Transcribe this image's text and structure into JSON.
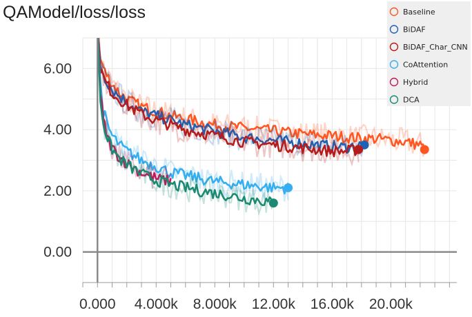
{
  "title": "QAModel/loss/loss",
  "chart_data": {
    "type": "line",
    "title": "QAModel/loss/loss",
    "xlabel": "",
    "ylabel": "",
    "xlim": [
      -1000,
      24500
    ],
    "ylim": [
      -1,
      7
    ],
    "x_ticks": [
      0,
      4000,
      8000,
      12000,
      16000,
      20000
    ],
    "x_tick_labels": [
      "0.000",
      "4.000k",
      "8.000k",
      "12.00k",
      "16.00k",
      "20.00k"
    ],
    "y_ticks": [
      0,
      2,
      4,
      6
    ],
    "y_tick_labels": [
      "0.00",
      "2.00",
      "4.00",
      "6.00"
    ],
    "grid": true,
    "legend_position": "top-right",
    "series": [
      {
        "name": "Baseline",
        "color": "#ff5722",
        "x": [
          0,
          200,
          500,
          1000,
          1500,
          2000,
          3000,
          4000,
          5000,
          6000,
          7000,
          8000,
          9000,
          10000,
          11000,
          12000,
          13000,
          14000,
          15000,
          16000,
          17000,
          18000,
          19000,
          20000,
          21000,
          22000,
          22300
        ],
        "y": [
          7.2,
          6.3,
          5.9,
          5.5,
          5.2,
          5.0,
          4.75,
          4.6,
          4.45,
          4.35,
          4.25,
          4.15,
          4.1,
          4.05,
          4.0,
          3.95,
          3.9,
          3.85,
          3.82,
          3.8,
          3.75,
          3.72,
          3.7,
          3.65,
          3.6,
          3.5,
          3.35
        ]
      },
      {
        "name": "BiDAF",
        "color": "#1f62b4",
        "x": [
          0,
          200,
          500,
          1000,
          2000,
          3000,
          4000,
          5000,
          6000,
          7000,
          8000,
          9000,
          10000,
          11000,
          12000,
          13000,
          14000,
          15000,
          16000,
          17000,
          18000,
          18200
        ],
        "y": [
          7.2,
          6.1,
          5.7,
          5.3,
          4.9,
          4.6,
          4.45,
          4.3,
          4.15,
          4.05,
          3.95,
          3.85,
          3.75,
          3.7,
          3.65,
          3.6,
          3.55,
          3.5,
          3.45,
          3.42,
          3.5,
          3.5
        ]
      },
      {
        "name": "BiDAF_Char_CNN",
        "color": "#b71c1c",
        "x": [
          0,
          200,
          500,
          1000,
          2000,
          3000,
          4000,
          5000,
          6000,
          7000,
          8000,
          9000,
          10000,
          11000,
          12000,
          13000,
          14000,
          15000,
          16000,
          17000,
          17800
        ],
        "y": [
          7.2,
          6.0,
          5.6,
          5.2,
          4.8,
          4.5,
          4.3,
          4.15,
          4.0,
          3.9,
          3.8,
          3.7,
          3.6,
          3.55,
          3.5,
          3.45,
          3.4,
          3.35,
          3.3,
          3.3,
          3.35
        ]
      },
      {
        "name": "CoAttention",
        "color": "#36aff0",
        "x": [
          0,
          200,
          400,
          700,
          1000,
          1500,
          2000,
          3000,
          4000,
          5000,
          6000,
          7000,
          8000,
          9000,
          10000,
          11000,
          12000,
          13000
        ],
        "y": [
          7.2,
          5.5,
          4.6,
          4.1,
          3.8,
          3.5,
          3.3,
          3.0,
          2.8,
          2.6,
          2.5,
          2.4,
          2.3,
          2.25,
          2.2,
          2.15,
          2.1,
          2.1
        ]
      },
      {
        "name": "Hybrid",
        "color": "#c2185b",
        "x": [
          0,
          200,
          400,
          700,
          1000,
          1500,
          2000,
          3000,
          4000,
          5000
        ],
        "y": [
          7.2,
          5.2,
          4.3,
          3.7,
          3.4,
          3.1,
          2.9,
          2.6,
          2.4,
          2.3
        ]
      },
      {
        "name": "DCA",
        "color": "#1b8a73",
        "x": [
          0,
          200,
          400,
          700,
          1000,
          1500,
          2000,
          3000,
          4000,
          5000,
          6000,
          7000,
          8000,
          9000,
          10000,
          11000,
          12000
        ],
        "y": [
          7.2,
          5.0,
          4.2,
          3.7,
          3.35,
          3.05,
          2.85,
          2.55,
          2.35,
          2.2,
          2.1,
          2.0,
          1.92,
          1.85,
          1.75,
          1.7,
          1.6
        ]
      }
    ]
  }
}
